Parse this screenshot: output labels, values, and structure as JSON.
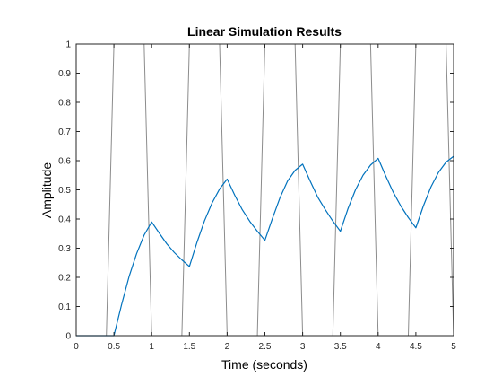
{
  "chart_data": {
    "type": "line",
    "title": "Linear Simulation Results",
    "xlabel": "Time (seconds)",
    "ylabel": "Amplitude",
    "xlim": [
      0,
      5
    ],
    "ylim": [
      0,
      1
    ],
    "grid": false,
    "legend": "none",
    "x_ticks": [
      0,
      0.5,
      1,
      1.5,
      2,
      2.5,
      3,
      3.5,
      4,
      4.5,
      5
    ],
    "x_tick_labels": [
      "0",
      "0.5",
      "1",
      "1.5",
      "2",
      "2.5",
      "3",
      "3.5",
      "4",
      "4.5",
      "5"
    ],
    "y_ticks": [
      0,
      0.1,
      0.2,
      0.3,
      0.4,
      0.5,
      0.6,
      0.7,
      0.8,
      0.9,
      1
    ],
    "y_tick_labels": [
      "0",
      "0.1",
      "0.2",
      "0.3",
      "0.4",
      "0.5",
      "0.6",
      "0.7",
      "0.8",
      "0.9",
      "1"
    ],
    "series": [
      {
        "color": "#8c8c8c",
        "x": [
          0,
          0.4,
          0.5,
          0.9,
          1.0,
          1.4,
          1.5,
          1.9,
          2.0,
          2.4,
          2.5,
          2.9,
          3.0,
          3.4,
          3.5,
          3.9,
          4.0,
          4.4,
          4.5,
          4.9,
          5.0
        ],
        "y": [
          0,
          0,
          1,
          1,
          0,
          0,
          1,
          1,
          0,
          0,
          1,
          1,
          0,
          0,
          1,
          1,
          0,
          0,
          1,
          1,
          0
        ]
      },
      {
        "color": "#0072bd",
        "x": [
          0,
          0.5,
          0.6,
          0.7,
          0.8,
          0.9,
          1.0,
          1.1,
          1.2,
          1.3,
          1.4,
          1.5,
          1.6,
          1.7,
          1.8,
          1.9,
          2.0,
          2.1,
          2.2,
          2.3,
          2.4,
          2.5,
          2.6,
          2.7,
          2.8,
          2.9,
          3.0,
          3.1,
          3.2,
          3.3,
          3.4,
          3.5,
          3.6,
          3.7,
          3.8,
          3.9,
          4.0,
          4.1,
          4.2,
          4.3,
          4.4,
          4.5,
          4.6,
          4.7,
          4.8,
          4.9,
          5.0
        ],
        "y": [
          0,
          0,
          0.105,
          0.202,
          0.281,
          0.345,
          0.39,
          0.352,
          0.315,
          0.285,
          0.26,
          0.237,
          0.32,
          0.394,
          0.455,
          0.503,
          0.537,
          0.482,
          0.432,
          0.392,
          0.358,
          0.327,
          0.402,
          0.473,
          0.53,
          0.567,
          0.588,
          0.53,
          0.475,
          0.432,
          0.393,
          0.358,
          0.435,
          0.5,
          0.55,
          0.585,
          0.608,
          0.548,
          0.492,
          0.445,
          0.405,
          0.37,
          0.445,
          0.51,
          0.56,
          0.595,
          0.615
        ]
      }
    ]
  }
}
